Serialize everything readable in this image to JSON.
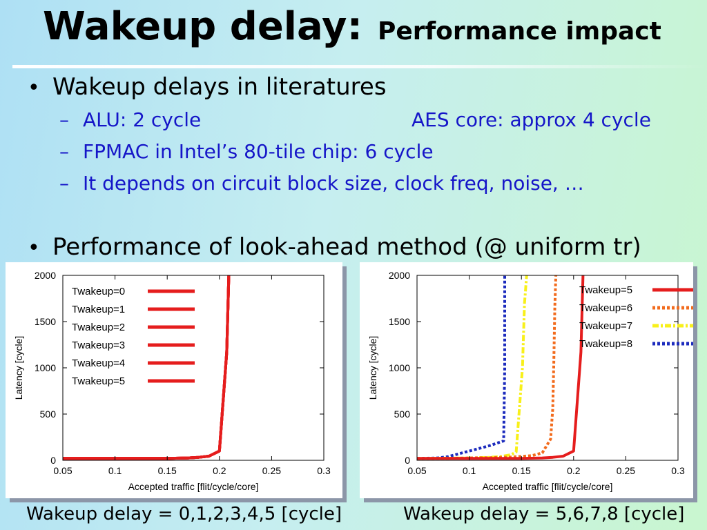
{
  "slide": {
    "title": "Wakeup delay:",
    "subtitle": "Performance impact",
    "bullets": [
      {
        "text": "Wakeup delays in literatures",
        "subitems": [
          {
            "left": "ALU: 2 cycle",
            "right": "AES core: approx 4 cycle"
          },
          {
            "left": "FPMAC in Intel’s 80-tile chip:  6 cycle"
          },
          {
            "left": "It depends on circuit block size, clock freq, noise, …"
          }
        ]
      },
      {
        "text": "Performance of look-ahead method (@ uniform tr)"
      }
    ],
    "bullet_symbol": "•",
    "dash_symbol": "–",
    "captions": [
      "Wakeup delay = 0,1,2,3,4,5 [cycle]",
      "Wakeup delay = 5,6,7,8 [cycle]"
    ]
  },
  "chart_data": [
    {
      "type": "line",
      "title": "",
      "xlabel": "Accepted traffic [flit/cycle/core]",
      "ylabel": "Latency [cycle]",
      "xlim": [
        0.05,
        0.3
      ],
      "ylim": [
        0,
        2000
      ],
      "xticks": [
        0.05,
        0.1,
        0.15,
        0.2,
        0.25,
        0.3
      ],
      "yticks": [
        0,
        500,
        1000,
        1500,
        2000
      ],
      "legend_position": "top-left",
      "grid": false,
      "series": [
        {
          "name": "Twakeup=0",
          "color": "#e51d1d",
          "dash": "solid",
          "x": [
            0.05,
            0.1,
            0.15,
            0.17,
            0.18,
            0.19,
            0.2,
            0.207,
            0.209
          ],
          "y": [
            20,
            20,
            20,
            25,
            32,
            45,
            100,
            1170,
            2000
          ]
        },
        {
          "name": "Twakeup=1",
          "color": "#e51d1d",
          "dash": "solid",
          "x": [
            0.05,
            0.1,
            0.15,
            0.17,
            0.18,
            0.19,
            0.2,
            0.207,
            0.209
          ],
          "y": [
            20,
            20,
            20,
            25,
            32,
            45,
            100,
            1170,
            2000
          ]
        },
        {
          "name": "Twakeup=2",
          "color": "#e51d1d",
          "dash": "solid",
          "x": [
            0.05,
            0.1,
            0.15,
            0.17,
            0.18,
            0.19,
            0.2,
            0.207,
            0.209
          ],
          "y": [
            20,
            20,
            20,
            25,
            32,
            45,
            100,
            1170,
            2000
          ]
        },
        {
          "name": "Twakeup=3",
          "color": "#e51d1d",
          "dash": "solid",
          "x": [
            0.05,
            0.1,
            0.15,
            0.17,
            0.18,
            0.19,
            0.2,
            0.207,
            0.209
          ],
          "y": [
            20,
            20,
            20,
            25,
            32,
            45,
            100,
            1170,
            2000
          ]
        },
        {
          "name": "Twakeup=4",
          "color": "#e51d1d",
          "dash": "solid",
          "x": [
            0.05,
            0.1,
            0.15,
            0.17,
            0.18,
            0.19,
            0.2,
            0.207,
            0.209
          ],
          "y": [
            20,
            20,
            20,
            25,
            32,
            45,
            100,
            1170,
            2000
          ]
        },
        {
          "name": "Twakeup=5",
          "color": "#e51d1d",
          "dash": "solid",
          "x": [
            0.05,
            0.1,
            0.15,
            0.17,
            0.18,
            0.19,
            0.2,
            0.207,
            0.209
          ],
          "y": [
            20,
            20,
            20,
            25,
            32,
            45,
            100,
            1170,
            2000
          ]
        }
      ]
    },
    {
      "type": "line",
      "title": "",
      "xlabel": "Accepted traffic [flit/cycle/core]",
      "ylabel": "Latency [cycle]",
      "xlim": [
        0.05,
        0.3
      ],
      "ylim": [
        0,
        2000
      ],
      "xticks": [
        0.05,
        0.1,
        0.15,
        0.2,
        0.25,
        0.3
      ],
      "yticks": [
        0,
        500,
        1000,
        1500,
        2000
      ],
      "legend_position": "top-right",
      "grid": false,
      "series": [
        {
          "name": "Twakeup=5",
          "color": "#e51d1d",
          "dash": "solid",
          "x": [
            0.05,
            0.1,
            0.15,
            0.17,
            0.18,
            0.19,
            0.2,
            0.207,
            0.209
          ],
          "y": [
            20,
            20,
            20,
            25,
            32,
            45,
            100,
            1170,
            2000
          ]
        },
        {
          "name": "Twakeup=6",
          "color": "#f26b1d",
          "dash": "dotted",
          "x": [
            0.05,
            0.08,
            0.1,
            0.12,
            0.14,
            0.16,
            0.17,
            0.178,
            0.18,
            0.181,
            0.182,
            0.183
          ],
          "y": [
            20,
            22,
            25,
            28,
            35,
            50,
            80,
            230,
            560,
            1050,
            1660,
            2000
          ]
        },
        {
          "name": "Twakeup=7",
          "color": "#f8f01a",
          "dash": "dashdot",
          "x": [
            0.05,
            0.1,
            0.12,
            0.13,
            0.14,
            0.145,
            0.151,
            0.153,
            0.155
          ],
          "y": [
            20,
            25,
            32,
            40,
            60,
            90,
            1000,
            1700,
            2000
          ]
        },
        {
          "name": "Twakeup=8",
          "color": "#1c2bbd",
          "dash": "dotted",
          "x": [
            0.05,
            0.07,
            0.08,
            0.1,
            0.12,
            0.133,
            0.134,
            0.134
          ],
          "y": [
            20,
            25,
            40,
            100,
            160,
            210,
            1000,
            2000
          ]
        }
      ]
    }
  ]
}
